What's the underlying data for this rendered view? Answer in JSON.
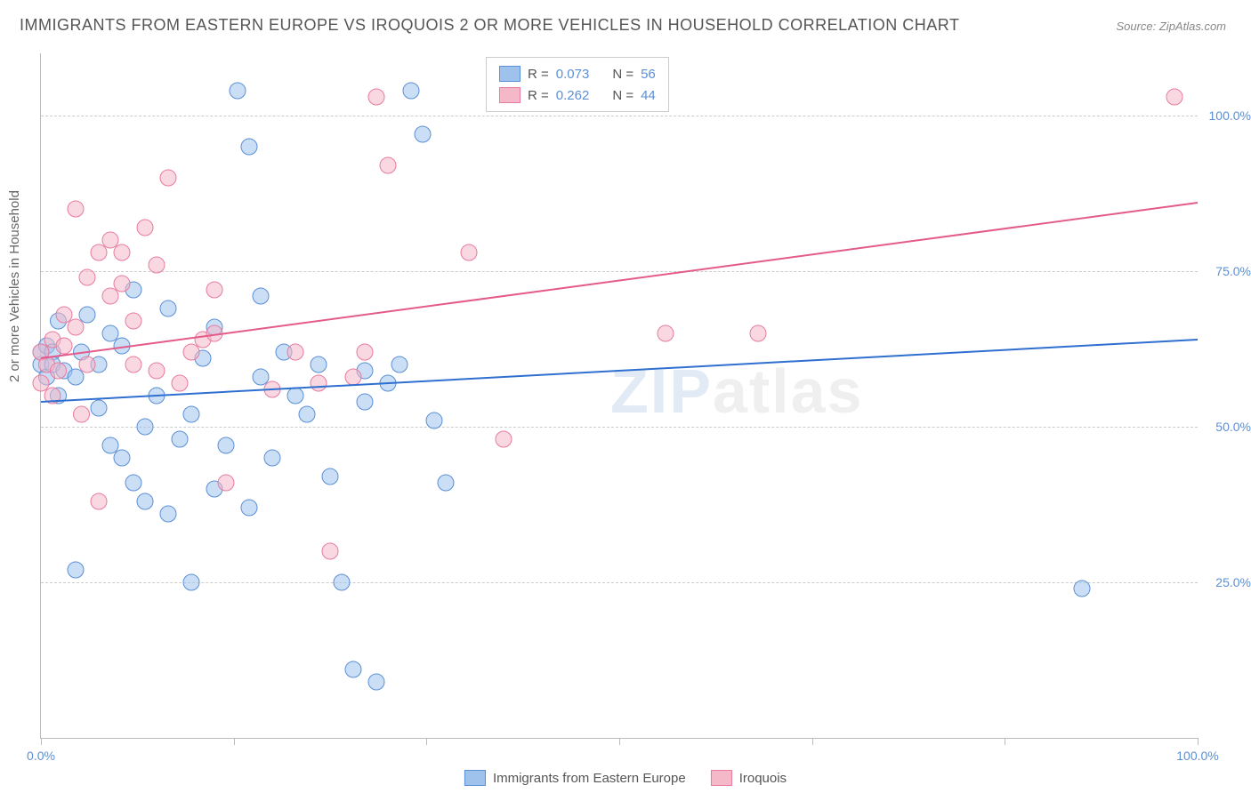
{
  "title": "IMMIGRANTS FROM EASTERN EUROPE VS IROQUOIS 2 OR MORE VEHICLES IN HOUSEHOLD CORRELATION CHART",
  "source": "Source: ZipAtlas.com",
  "y_axis_label": "2 or more Vehicles in Household",
  "watermark_a": "ZIP",
  "watermark_b": "atlas",
  "chart": {
    "type": "scatter",
    "xlim": [
      0,
      100
    ],
    "ylim": [
      0,
      110
    ],
    "x_ticks": [
      0,
      16.67,
      33.33,
      50,
      66.67,
      83.33,
      100
    ],
    "x_tick_labels": {
      "0": "0.0%",
      "100": "100.0%"
    },
    "y_gridlines": [
      25,
      50,
      75,
      100
    ],
    "y_tick_labels": {
      "25": "25.0%",
      "50": "50.0%",
      "75": "75.0%",
      "100": "100.0%"
    },
    "background_color": "#ffffff",
    "grid_color": "#cccccc",
    "axis_color": "#bbbbbb",
    "tick_label_color": "#5b8fd6",
    "marker_radius": 9,
    "marker_opacity": 0.55,
    "line_width": 2,
    "series": [
      {
        "name": "Immigrants from Eastern Europe",
        "color_fill": "#9fc2ec",
        "color_stroke": "#5b8fd6",
        "line_color": "#2f6fcf",
        "R": "0.073",
        "N": "56",
        "trend": {
          "x1": 0,
          "y1": 54,
          "x2": 100,
          "y2": 64
        },
        "points": [
          [
            0,
            60
          ],
          [
            0,
            62
          ],
          [
            0.5,
            58
          ],
          [
            0.5,
            63
          ],
          [
            1,
            62
          ],
          [
            1,
            60
          ],
          [
            1.5,
            55
          ],
          [
            1.5,
            67
          ],
          [
            2,
            59
          ],
          [
            3,
            27
          ],
          [
            3,
            58
          ],
          [
            3.5,
            62
          ],
          [
            4,
            68
          ],
          [
            5,
            60
          ],
          [
            5,
            53
          ],
          [
            6,
            65
          ],
          [
            6,
            47
          ],
          [
            7,
            63
          ],
          [
            7,
            45
          ],
          [
            8,
            72
          ],
          [
            8,
            41
          ],
          [
            9,
            50
          ],
          [
            9,
            38
          ],
          [
            10,
            55
          ],
          [
            11,
            69
          ],
          [
            11,
            36
          ],
          [
            12,
            48
          ],
          [
            13,
            52
          ],
          [
            13,
            25
          ],
          [
            14,
            61
          ],
          [
            15,
            66
          ],
          [
            15,
            40
          ],
          [
            16,
            47
          ],
          [
            17,
            104
          ],
          [
            18,
            95
          ],
          [
            18,
            37
          ],
          [
            19,
            58
          ],
          [
            19,
            71
          ],
          [
            20,
            45
          ],
          [
            21,
            62
          ],
          [
            22,
            55
          ],
          [
            23,
            52
          ],
          [
            24,
            60
          ],
          [
            25,
            42
          ],
          [
            26,
            25
          ],
          [
            27,
            11
          ],
          [
            28,
            59
          ],
          [
            29,
            9
          ],
          [
            30,
            57
          ],
          [
            32,
            104
          ],
          [
            33,
            97
          ],
          [
            34,
            51
          ],
          [
            35,
            41
          ],
          [
            90,
            24
          ],
          [
            31,
            60
          ],
          [
            28,
            54
          ]
        ]
      },
      {
        "name": "Iroquois",
        "color_fill": "#f4b8c8",
        "color_stroke": "#e87ba0",
        "line_color": "#e45b8a",
        "R": "0.262",
        "N": "44",
        "trend": {
          "x1": 0,
          "y1": 61,
          "x2": 100,
          "y2": 86
        },
        "points": [
          [
            0,
            57
          ],
          [
            0,
            62
          ],
          [
            0.5,
            60
          ],
          [
            1,
            64
          ],
          [
            1,
            55
          ],
          [
            1.5,
            59
          ],
          [
            2,
            68
          ],
          [
            2,
            63
          ],
          [
            3,
            85
          ],
          [
            3,
            66
          ],
          [
            3.5,
            52
          ],
          [
            4,
            74
          ],
          [
            4,
            60
          ],
          [
            5,
            78
          ],
          [
            5,
            38
          ],
          [
            6,
            71
          ],
          [
            6,
            80
          ],
          [
            7,
            73
          ],
          [
            7,
            78
          ],
          [
            8,
            60
          ],
          [
            9,
            82
          ],
          [
            10,
            59
          ],
          [
            10,
            76
          ],
          [
            11,
            90
          ],
          [
            12,
            57
          ],
          [
            13,
            62
          ],
          [
            14,
            64
          ],
          [
            15,
            72
          ],
          [
            16,
            41
          ],
          [
            20,
            56
          ],
          [
            22,
            62
          ],
          [
            24,
            57
          ],
          [
            25,
            30
          ],
          [
            27,
            58
          ],
          [
            28,
            62
          ],
          [
            29,
            103
          ],
          [
            30,
            92
          ],
          [
            37,
            78
          ],
          [
            40,
            48
          ],
          [
            54,
            65
          ],
          [
            62,
            65
          ],
          [
            15,
            65
          ],
          [
            8,
            67
          ],
          [
            98,
            103
          ]
        ]
      }
    ]
  },
  "legend_top": {
    "R_label": "R =",
    "N_label": "N ="
  },
  "legend_bottom": {
    "series1": "Immigrants from Eastern Europe",
    "series2": "Iroquois"
  }
}
